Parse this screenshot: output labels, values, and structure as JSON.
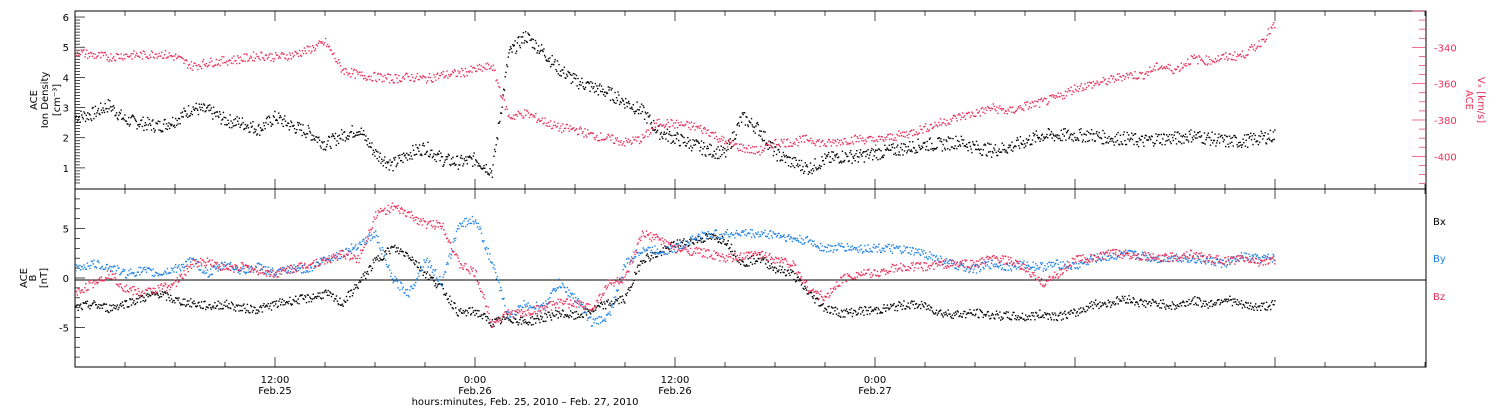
{
  "chart_data": [
    {
      "type": "scatter",
      "ylabel_left": [
        "ACE",
        "Ion Density",
        "[cm⁻³]"
      ],
      "ylabel_right": [
        "ACE",
        "Vₓ [km/s]"
      ],
      "left_axis": {
        "ylim": [
          0.3,
          6.2
        ],
        "ticks": [
          1,
          2,
          3,
          4,
          5,
          6
        ],
        "tick_labels": [
          "1",
          "2",
          "3",
          "4",
          "5",
          "6"
        ]
      },
      "right_axis": {
        "ylim": [
          -418,
          -320
        ],
        "ticks": [
          -340,
          -360,
          -380,
          -400
        ],
        "tick_labels": [
          "-340",
          "-360",
          "-380",
          "-400"
        ]
      },
      "x_range_hours": [
        0,
        72
      ],
      "series": [
        {
          "name": "ACE Ion Density",
          "axis": "left",
          "color": "#000000",
          "x": [
            0,
            1,
            2,
            3,
            4,
            5,
            6,
            7,
            8,
            9,
            10,
            11,
            12,
            13,
            14,
            15,
            16,
            17,
            18,
            19,
            20,
            21,
            22,
            23,
            24,
            25,
            26,
            27,
            28,
            29,
            30,
            31,
            32,
            33,
            34,
            35,
            36,
            37,
            38,
            39,
            40,
            41,
            42,
            43,
            44,
            45,
            46,
            47,
            48,
            49,
            50,
            51,
            52,
            53,
            54,
            55,
            56,
            57,
            58,
            59,
            60,
            61,
            62,
            63,
            64,
            65,
            66,
            67,
            68,
            69,
            70,
            71,
            72
          ],
          "y": [
            2.7,
            2.8,
            3.1,
            2.6,
            2.5,
            2.4,
            2.6,
            3.0,
            2.9,
            2.6,
            2.5,
            2.3,
            2.7,
            2.4,
            2.2,
            1.8,
            2.1,
            2.3,
            1.5,
            1.1,
            1.5,
            1.7,
            1.3,
            1.2,
            1.3,
            0.9,
            4.8,
            5.4,
            4.9,
            4.3,
            3.9,
            3.7,
            3.5,
            3.2,
            2.9,
            2.2,
            2.0,
            1.8,
            1.6,
            1.5,
            2.7,
            2.3,
            1.5,
            1.2,
            1.0,
            1.3,
            1.4,
            1.4,
            1.5,
            1.6,
            1.7,
            1.8,
            1.8,
            1.9,
            1.7,
            1.6,
            1.7,
            1.9,
            2.1,
            2.1,
            2.1,
            2.1,
            2.0,
            2.0,
            1.9,
            2.0,
            2.0,
            2.1,
            2.0,
            1.9,
            1.9,
            2.0,
            2.1
          ]
        },
        {
          "name": "ACE Vx",
          "axis": "right",
          "color": "#E8315A",
          "x": [
            0,
            1,
            2,
            3,
            4,
            5,
            6,
            7,
            8,
            9,
            10,
            11,
            12,
            13,
            14,
            15,
            16,
            17,
            18,
            19,
            20,
            21,
            22,
            23,
            24,
            25,
            26,
            27,
            28,
            29,
            30,
            31,
            32,
            33,
            34,
            35,
            36,
            37,
            38,
            39,
            40,
            41,
            42,
            43,
            44,
            45,
            46,
            47,
            48,
            49,
            50,
            51,
            52,
            53,
            54,
            55,
            56,
            57,
            58,
            59,
            60,
            61,
            62,
            63,
            64,
            65,
            66,
            67,
            68,
            69,
            70,
            71,
            72
          ],
          "y": [
            -342,
            -344,
            -345,
            -344,
            -344,
            -343,
            -345,
            -350,
            -348,
            -347,
            -346,
            -344,
            -345,
            -344,
            -341,
            -337,
            -352,
            -355,
            -356,
            -357,
            -356,
            -357,
            -355,
            -354,
            -352,
            -350,
            -378,
            -376,
            -380,
            -384,
            -385,
            -388,
            -390,
            -392,
            -390,
            -381,
            -382,
            -383,
            -386,
            -392,
            -395,
            -397,
            -392,
            -392,
            -390,
            -393,
            -391,
            -390,
            -391,
            -389,
            -387,
            -384,
            -381,
            -378,
            -376,
            -373,
            -375,
            -372,
            -370,
            -367,
            -362,
            -360,
            -358,
            -355,
            -355,
            -350,
            -352,
            -346,
            -347,
            -345,
            -344,
            -338,
            -327
          ]
        }
      ]
    },
    {
      "type": "scatter",
      "ylabel_left": [
        "ACE",
        "B",
        "[nT]"
      ],
      "left_axis": {
        "ylim": [
          -9,
          9
        ],
        "ticks": [
          -5,
          0,
          5
        ],
        "tick_labels": [
          "-5",
          "0",
          "5"
        ]
      },
      "zero_line": true,
      "x_range_hours": [
        0,
        72
      ],
      "x_axis": {
        "tick_hours": [
          12,
          24,
          36,
          48
        ],
        "tick_labels": [
          [
            "12:00",
            "Feb.25"
          ],
          [
            "0:00",
            "Feb.26"
          ],
          [
            "12:00",
            "Feb.26"
          ],
          [
            "0:00",
            "Feb.27"
          ]
        ],
        "title": "hours:minutes, Feb. 25, 2010 – Feb. 27, 2010"
      },
      "legend_placement": "right",
      "series": [
        {
          "name": "Bx",
          "color": "#000000",
          "x": [
            0,
            1,
            2,
            3,
            4,
            5,
            6,
            7,
            8,
            9,
            10,
            11,
            12,
            13,
            14,
            15,
            16,
            17,
            18,
            19,
            20,
            21,
            22,
            23,
            24,
            25,
            26,
            27,
            28,
            29,
            30,
            31,
            32,
            33,
            34,
            35,
            36,
            37,
            38,
            39,
            40,
            41,
            42,
            43,
            44,
            45,
            46,
            47,
            48,
            49,
            50,
            51,
            52,
            53,
            54,
            55,
            56,
            57,
            58,
            59,
            60,
            61,
            62,
            63,
            64,
            65,
            66,
            67,
            68,
            69,
            70,
            71,
            72
          ],
          "y": [
            -3.0,
            -2.6,
            -3.0,
            -2.5,
            -2.0,
            -1.5,
            -2.2,
            -2.5,
            -2.8,
            -2.6,
            -3.0,
            -3.1,
            -2.6,
            -2.2,
            -2.0,
            -1.5,
            -2.5,
            -0.5,
            1.8,
            3.1,
            2.4,
            0.5,
            -1.0,
            -3.5,
            -3.3,
            -4.5,
            -4.0,
            -4.4,
            -4.0,
            -3.5,
            -3.8,
            -3.2,
            -2.5,
            -2.0,
            2.0,
            2.5,
            3.5,
            3.8,
            4.2,
            3.9,
            1.5,
            2.1,
            1.0,
            0.5,
            -1.5,
            -3.0,
            -3.5,
            -3.3,
            -3.2,
            -2.9,
            -2.6,
            -2.8,
            -3.5,
            -3.6,
            -3.5,
            -3.7,
            -3.8,
            -3.9,
            -3.6,
            -3.8,
            -3.5,
            -2.6,
            -2.5,
            -2.0,
            -2.5,
            -2.5,
            -2.8,
            -2.2,
            -2.6,
            -2.0,
            -2.7,
            -2.9,
            -2.6
          ]
        },
        {
          "name": "By",
          "color": "#1E82E6",
          "x": [
            0,
            1,
            2,
            3,
            4,
            5,
            6,
            7,
            8,
            9,
            10,
            11,
            12,
            13,
            14,
            15,
            16,
            17,
            18,
            19,
            20,
            21,
            22,
            23,
            24,
            25,
            26,
            27,
            28,
            29,
            30,
            31,
            32,
            33,
            34,
            35,
            36,
            37,
            38,
            39,
            40,
            41,
            42,
            43,
            44,
            45,
            46,
            47,
            48,
            49,
            50,
            51,
            52,
            53,
            54,
            55,
            56,
            57,
            58,
            59,
            60,
            61,
            62,
            63,
            64,
            65,
            66,
            67,
            68,
            69,
            70,
            71,
            72
          ],
          "y": [
            1.0,
            1.5,
            1.2,
            0.5,
            0.8,
            0.5,
            1.0,
            1.8,
            0.5,
            1.5,
            0.8,
            1.2,
            0.5,
            1.0,
            1.0,
            2.0,
            2.5,
            3.5,
            4.5,
            0.0,
            -1.5,
            2.0,
            -0.5,
            5.5,
            6.0,
            1.5,
            -4.0,
            -2.5,
            -3.0,
            -0.5,
            -2.0,
            -4.5,
            -3.8,
            1.5,
            3.0,
            2.8,
            3.0,
            4.0,
            4.5,
            4.5,
            4.6,
            4.5,
            4.5,
            4.0,
            3.8,
            3.0,
            3.2,
            3.0,
            3.1,
            3.0,
            2.8,
            2.5,
            1.8,
            1.2,
            1.0,
            1.5,
            1.2,
            1.4,
            1.2,
            1.5,
            1.2,
            2.0,
            2.2,
            2.5,
            2.3,
            2.0,
            2.2,
            2.0,
            1.8,
            1.5,
            2.2,
            2.0,
            2.1
          ]
        },
        {
          "name": "Bz",
          "color": "#E8315A",
          "x": [
            0,
            1,
            2,
            3,
            4,
            5,
            6,
            7,
            8,
            9,
            10,
            11,
            12,
            13,
            14,
            15,
            16,
            17,
            18,
            19,
            20,
            21,
            22,
            23,
            24,
            25,
            26,
            27,
            28,
            29,
            30,
            31,
            32,
            33,
            34,
            35,
            36,
            37,
            38,
            39,
            40,
            41,
            42,
            43,
            44,
            45,
            46,
            47,
            48,
            49,
            50,
            51,
            52,
            53,
            54,
            55,
            56,
            57,
            58,
            59,
            60,
            61,
            62,
            63,
            64,
            65,
            66,
            67,
            68,
            69,
            70,
            71,
            72
          ],
          "y": [
            -1.5,
            -0.5,
            0.5,
            -1.0,
            -1.5,
            -1.0,
            -0.5,
            1.5,
            1.8,
            1.0,
            1.2,
            0.8,
            0.5,
            1.0,
            1.5,
            1.8,
            2.5,
            2.0,
            6.5,
            7.2,
            6.5,
            5.5,
            5.5,
            1.5,
            0.5,
            -4.5,
            -3.5,
            -3.5,
            -3.0,
            -2.5,
            -2.5,
            -3.0,
            -0.5,
            0.0,
            4.5,
            4.0,
            3.0,
            2.8,
            2.5,
            2.0,
            2.2,
            2.5,
            2.0,
            1.5,
            -1.0,
            -2.0,
            0.0,
            0.5,
            0.5,
            1.0,
            1.2,
            1.2,
            1.5,
            1.5,
            1.5,
            2.0,
            1.8,
            1.0,
            -0.5,
            0.5,
            2.0,
            2.0,
            2.5,
            2.5,
            2.3,
            2.0,
            2.2,
            2.5,
            2.0,
            1.8,
            2.0,
            1.7,
            1.8
          ]
        }
      ]
    }
  ]
}
